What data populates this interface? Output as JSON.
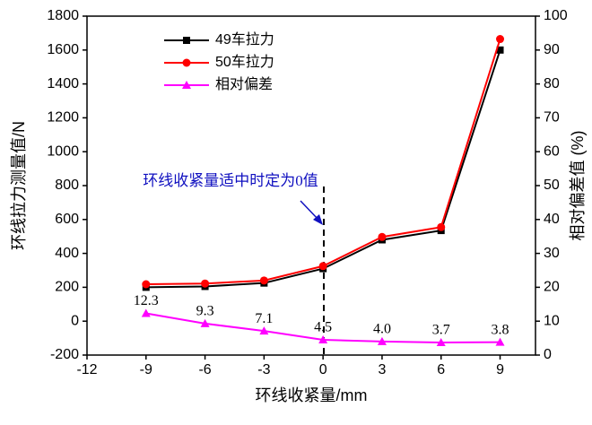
{
  "chart_data": {
    "type": "line",
    "x_label": "环线收紧量/mm",
    "y_label": "环线拉力测量值/N",
    "y2_label": "相对偏差值 (%)",
    "annotation": "环线收紧量适中时定为0值",
    "x": [
      -9,
      -6,
      -3,
      0,
      3,
      6,
      9
    ],
    "xlim": [
      -12,
      10.8
    ],
    "xticks": [
      -12,
      -9,
      -6,
      -3,
      0,
      3,
      6,
      9
    ],
    "ylim": [
      -200,
      1800
    ],
    "yticks": [
      -200,
      0,
      200,
      400,
      600,
      800,
      1000,
      1200,
      1400,
      1600,
      1800
    ],
    "y2lim": [
      0,
      100
    ],
    "y2ticks": [
      0,
      10,
      20,
      30,
      40,
      50,
      60,
      70,
      80,
      90,
      100
    ],
    "legend": "upper left",
    "series": [
      {
        "name": "49车拉力",
        "color": "#000000",
        "marker": "square",
        "values": [
          200,
          205,
          225,
          310,
          480,
          535,
          1600
        ]
      },
      {
        "name": "50车拉力",
        "color": "#ff0000",
        "marker": "circle",
        "values": [
          218,
          222,
          240,
          325,
          497,
          555,
          1665
        ]
      },
      {
        "name": "相对偏差",
        "color": "#ff00ff",
        "marker": "triangle",
        "axis": "y2",
        "values": [
          12.3,
          9.3,
          7.1,
          4.5,
          4.0,
          3.7,
          3.8
        ],
        "value_labels": [
          "12.3",
          "9.3",
          "7.1",
          "4.5",
          "4.0",
          "3.7",
          "3.8"
        ]
      }
    ]
  }
}
